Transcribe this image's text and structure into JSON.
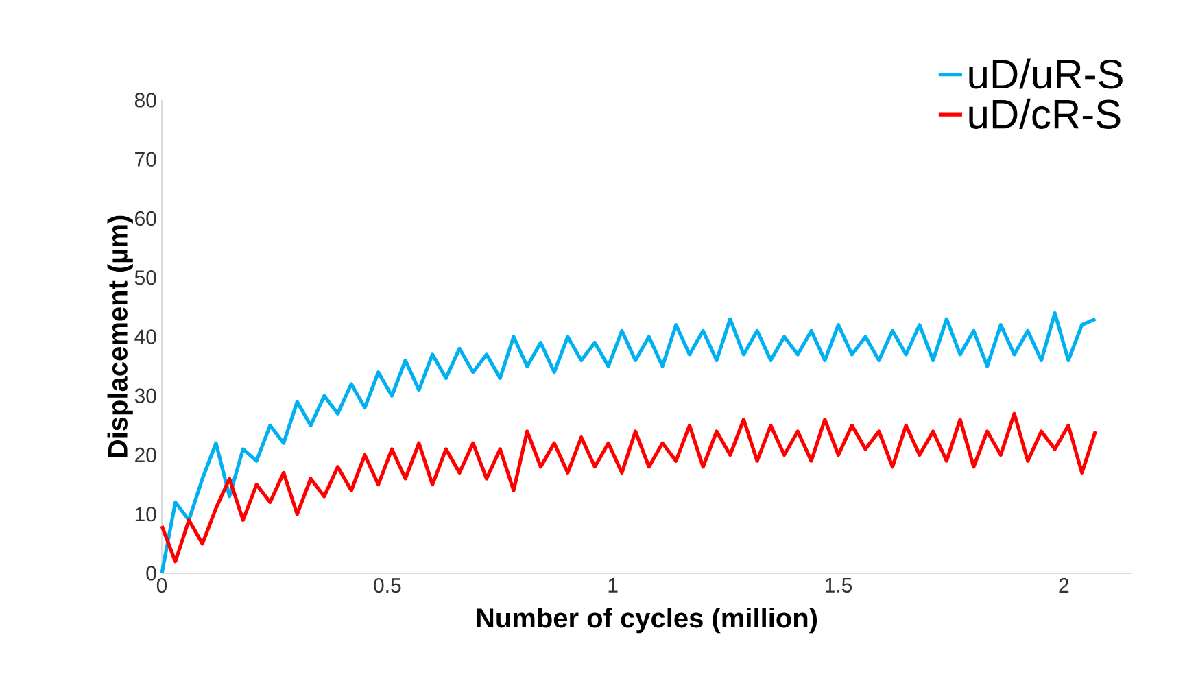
{
  "chart_data": {
    "type": "line",
    "xlabel": "Number of cycles (million)",
    "ylabel": "Displacement (µm)",
    "x": [
      0,
      0.03,
      0.06,
      0.09,
      0.12,
      0.15,
      0.18,
      0.21,
      0.24,
      0.27,
      0.3,
      0.33,
      0.36,
      0.39,
      0.42,
      0.45,
      0.48,
      0.51,
      0.54,
      0.57,
      0.6,
      0.63,
      0.66,
      0.69,
      0.72,
      0.75,
      0.78,
      0.81,
      0.84,
      0.87,
      0.9,
      0.93,
      0.96,
      0.99,
      1.02,
      1.05,
      1.08,
      1.11,
      1.14,
      1.17,
      1.2,
      1.23,
      1.26,
      1.29,
      1.32,
      1.35,
      1.38,
      1.41,
      1.44,
      1.47,
      1.5,
      1.53,
      1.56,
      1.59,
      1.62,
      1.65,
      1.68,
      1.71,
      1.74,
      1.77,
      1.8,
      1.83,
      1.86,
      1.89,
      1.92,
      1.95,
      1.98,
      2.01,
      2.04,
      2.07
    ],
    "series": [
      {
        "name": "uD/uR-S",
        "color": "#00b0f0",
        "values": [
          0,
          12,
          9,
          16,
          22,
          13,
          21,
          19,
          25,
          22,
          29,
          25,
          30,
          27,
          32,
          28,
          34,
          30,
          36,
          31,
          37,
          33,
          38,
          34,
          37,
          33,
          40,
          35,
          39,
          34,
          40,
          36,
          39,
          35,
          41,
          36,
          40,
          35,
          42,
          37,
          41,
          36,
          43,
          37,
          41,
          36,
          40,
          37,
          41,
          36,
          42,
          37,
          40,
          36,
          41,
          37,
          42,
          36,
          43,
          37,
          41,
          35,
          42,
          37,
          41,
          36,
          44,
          36,
          42,
          43
        ]
      },
      {
        "name": "uD/cR-S",
        "color": "#ff0000",
        "values": [
          8,
          2,
          9,
          5,
          11,
          16,
          9,
          15,
          12,
          17,
          10,
          16,
          13,
          18,
          14,
          20,
          15,
          21,
          16,
          22,
          15,
          21,
          17,
          22,
          16,
          21,
          14,
          24,
          18,
          22,
          17,
          23,
          18,
          22,
          17,
          24,
          18,
          22,
          19,
          25,
          18,
          24,
          20,
          26,
          19,
          25,
          20,
          24,
          19,
          26,
          20,
          25,
          21,
          24,
          18,
          25,
          20,
          24,
          19,
          26,
          18,
          24,
          20,
          27,
          19,
          24,
          21,
          25,
          17,
          24
        ]
      }
    ],
    "xlim": [
      0,
      2.15
    ],
    "ylim": [
      0,
      80
    ],
    "xticks": [
      0,
      0.5,
      1,
      1.5,
      2
    ],
    "yticks": [
      0,
      10,
      20,
      30,
      40,
      50,
      60,
      70,
      80
    ],
    "legend": "top right",
    "line_style": "solid"
  }
}
